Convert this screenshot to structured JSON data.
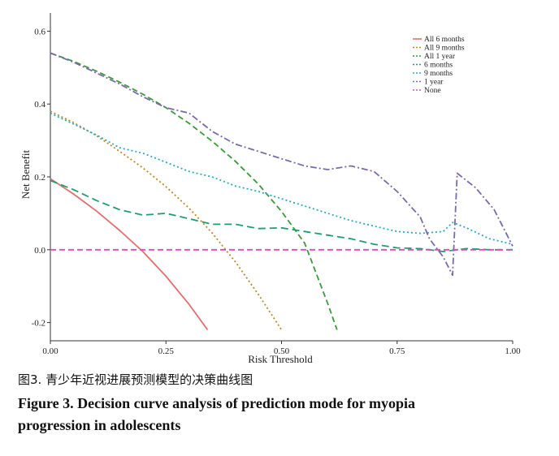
{
  "chart_data": {
    "type": "line",
    "xlabel": "Risk Threshold",
    "ylabel": "Net Benefit",
    "xlim": [
      0,
      1
    ],
    "ylim": [
      -0.25,
      0.65
    ],
    "x_ticks": [
      "0.00",
      "0.25",
      "0.50",
      "0.75",
      "1.00"
    ],
    "y_ticks": [
      "-0.2",
      "0.0",
      "0.2",
      "0.4",
      "0.6"
    ],
    "grid": false,
    "legend_position": "top-right",
    "series": [
      {
        "name": "All 6 months",
        "color": "#e07070",
        "dash": "solid",
        "x": [
          0,
          0.05,
          0.1,
          0.15,
          0.2,
          0.25,
          0.3,
          0.34
        ],
        "y": [
          0.195,
          0.153,
          0.106,
          0.053,
          -0.005,
          -0.073,
          -0.15,
          -0.22
        ]
      },
      {
        "name": "All 9 months",
        "color": "#b58a2a",
        "dash": "dotted",
        "x": [
          0,
          0.05,
          0.1,
          0.15,
          0.2,
          0.25,
          0.3,
          0.35,
          0.4,
          0.45,
          0.5
        ],
        "y": [
          0.38,
          0.349,
          0.313,
          0.27,
          0.225,
          0.173,
          0.114,
          0.046,
          -0.033,
          -0.123,
          -0.22
        ]
      },
      {
        "name": "All 1 year",
        "color": "#3a9a3a",
        "dash": "dashed",
        "x": [
          0,
          0.05,
          0.1,
          0.15,
          0.2,
          0.25,
          0.3,
          0.35,
          0.4,
          0.45,
          0.5,
          0.55,
          0.6,
          0.62
        ],
        "y": [
          0.54,
          0.517,
          0.49,
          0.46,
          0.427,
          0.39,
          0.347,
          0.298,
          0.243,
          0.18,
          0.105,
          0.018,
          -0.148,
          -0.22
        ]
      },
      {
        "name": "6 months",
        "color": "#1e9e6e",
        "dash": "longdash",
        "x": [
          0,
          0.05,
          0.1,
          0.15,
          0.2,
          0.25,
          0.3,
          0.35,
          0.4,
          0.45,
          0.5,
          0.55,
          0.6,
          0.65,
          0.7,
          0.75,
          0.8,
          0.85,
          0.9,
          0.95,
          1.0
        ],
        "y": [
          0.19,
          0.165,
          0.135,
          0.11,
          0.095,
          0.1,
          0.085,
          0.07,
          0.07,
          0.058,
          0.06,
          0.05,
          0.04,
          0.03,
          0.015,
          0.005,
          0.003,
          -0.005,
          0.003,
          0.0,
          0.0
        ]
      },
      {
        "name": "9 months",
        "color": "#2aa8c4",
        "dash": "dotted",
        "x": [
          0,
          0.05,
          0.1,
          0.15,
          0.2,
          0.25,
          0.3,
          0.35,
          0.4,
          0.45,
          0.5,
          0.55,
          0.6,
          0.65,
          0.7,
          0.75,
          0.8,
          0.85,
          0.87,
          0.9,
          0.95,
          1.0
        ],
        "y": [
          0.375,
          0.345,
          0.315,
          0.28,
          0.265,
          0.24,
          0.215,
          0.2,
          0.175,
          0.16,
          0.14,
          0.12,
          0.1,
          0.08,
          0.065,
          0.05,
          0.045,
          0.05,
          0.075,
          0.06,
          0.03,
          0.015
        ]
      },
      {
        "name": "1 year",
        "color": "#7a6aa8",
        "dash": "dashdot",
        "x": [
          0,
          0.05,
          0.1,
          0.15,
          0.2,
          0.25,
          0.3,
          0.35,
          0.4,
          0.45,
          0.5,
          0.55,
          0.6,
          0.65,
          0.7,
          0.75,
          0.8,
          0.82,
          0.85,
          0.87,
          0.88,
          0.92,
          0.96,
          1.0
        ],
        "y": [
          0.54,
          0.515,
          0.485,
          0.455,
          0.42,
          0.39,
          0.375,
          0.325,
          0.29,
          0.27,
          0.25,
          0.23,
          0.22,
          0.23,
          0.215,
          0.16,
          0.09,
          0.03,
          -0.02,
          -0.07,
          0.21,
          0.17,
          0.11,
          0.01
        ]
      },
      {
        "name": "None",
        "color": "#d94fb0",
        "dash": "dashed",
        "x": [
          0,
          1
        ],
        "y": [
          0,
          0
        ]
      }
    ]
  },
  "caption": {
    "chinese": "图3.   青少年近视进展预测模型的决策曲线图",
    "english_line1": "Figure 3.   Decision curve analysis  of prediction mode for myopia",
    "english_line2": "progression in adolescents"
  }
}
